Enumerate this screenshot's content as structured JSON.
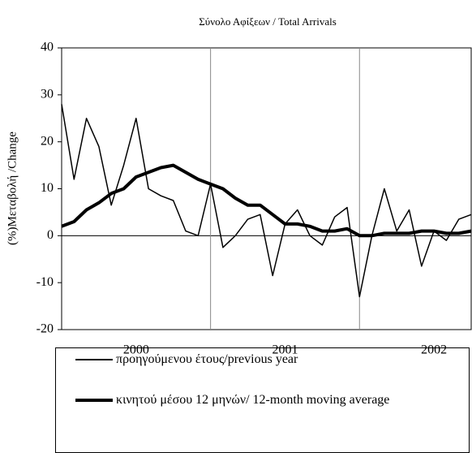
{
  "chart_data": {
    "type": "line",
    "title": "Σύνολο Αφίξεων / Total Arrivals",
    "y_label": "(%)Μεταβολή /Change",
    "categories": [
      null,
      null,
      null,
      null,
      null,
      null,
      "2000",
      null,
      null,
      null,
      null,
      null,
      null,
      null,
      null,
      null,
      null,
      null,
      "2001",
      null,
      null,
      null,
      null,
      null,
      null,
      null,
      null,
      null,
      null,
      null,
      "2002",
      null,
      null,
      null
    ],
    "series": [
      {
        "name": "προηγούμενου έτους/previous year",
        "color": "#000000",
        "width": 1.5,
        "values": [
          28,
          12,
          25,
          19,
          6.5,
          15,
          25,
          10,
          8.5,
          7.5,
          1,
          0,
          11,
          -2.5,
          0,
          3.5,
          4.5,
          -8.5,
          2.5,
          5.5,
          0,
          -2,
          4,
          6,
          -13,
          0,
          10,
          1,
          5.5,
          -6.5,
          1,
          -1,
          3.5,
          4.5
        ]
      },
      {
        "name": "κινητού μέσου 12 μηνών/ 12-month moving average",
        "color": "#000000",
        "width": 4,
        "values": [
          2,
          3,
          5.5,
          7,
          9,
          10,
          12.5,
          13.5,
          14.5,
          15,
          13.5,
          12,
          11,
          10,
          8,
          6.5,
          6.5,
          4.5,
          2.5,
          2.5,
          2,
          1,
          1,
          1.5,
          0,
          0,
          0.5,
          0.5,
          0.5,
          1,
          1,
          0.5,
          0.5,
          1
        ]
      }
    ],
    "ylim": [
      -20,
      40
    ],
    "yticks": [
      -20,
      -10,
      0,
      10,
      20,
      30,
      40
    ]
  }
}
